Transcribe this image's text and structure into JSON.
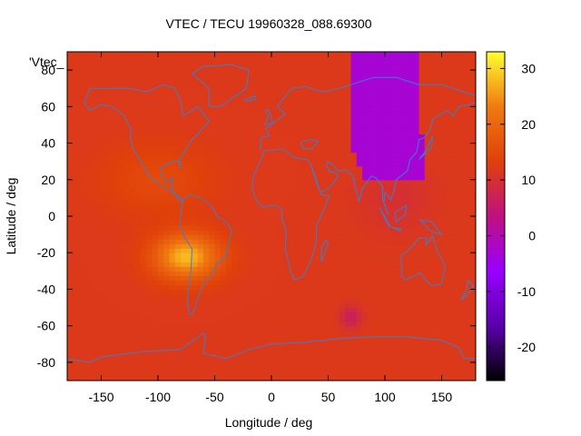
{
  "chart_data": {
    "type": "heatmap",
    "title": "VTEC / TECU 19960328_088.69300",
    "xlabel": "Longitude / deg",
    "ylabel": "Latitude / deg",
    "key_label": "'Vtec_",
    "xlim": [
      -180,
      180
    ],
    "ylim": [
      -90,
      90
    ],
    "x_ticks": [
      -150,
      -100,
      -50,
      0,
      50,
      100,
      150
    ],
    "y_ticks": [
      -80,
      -60,
      -40,
      -20,
      0,
      20,
      40,
      60,
      80
    ],
    "colorbar": {
      "range": [
        -26,
        33
      ],
      "ticks": [
        -20,
        -10,
        0,
        10,
        20,
        30
      ],
      "palette": [
        "#000000",
        "#5a00aa",
        "#9a00ff",
        "#c01080",
        "#e0400a",
        "#f07a10",
        "#ffff30"
      ]
    },
    "background_value": 12,
    "features": [
      {
        "name": "equatorial anomaly max",
        "lon": -75,
        "lat": -22,
        "value": 28
      },
      {
        "name": "Indian Ocean low",
        "lon": 70,
        "lat": -55,
        "value": 6
      },
      {
        "name": "northern depletion",
        "lon_range": [
          70,
          135
        ],
        "lat_range": [
          20,
          90
        ],
        "value": -3
      }
    ],
    "grid": false,
    "legend": "none"
  }
}
